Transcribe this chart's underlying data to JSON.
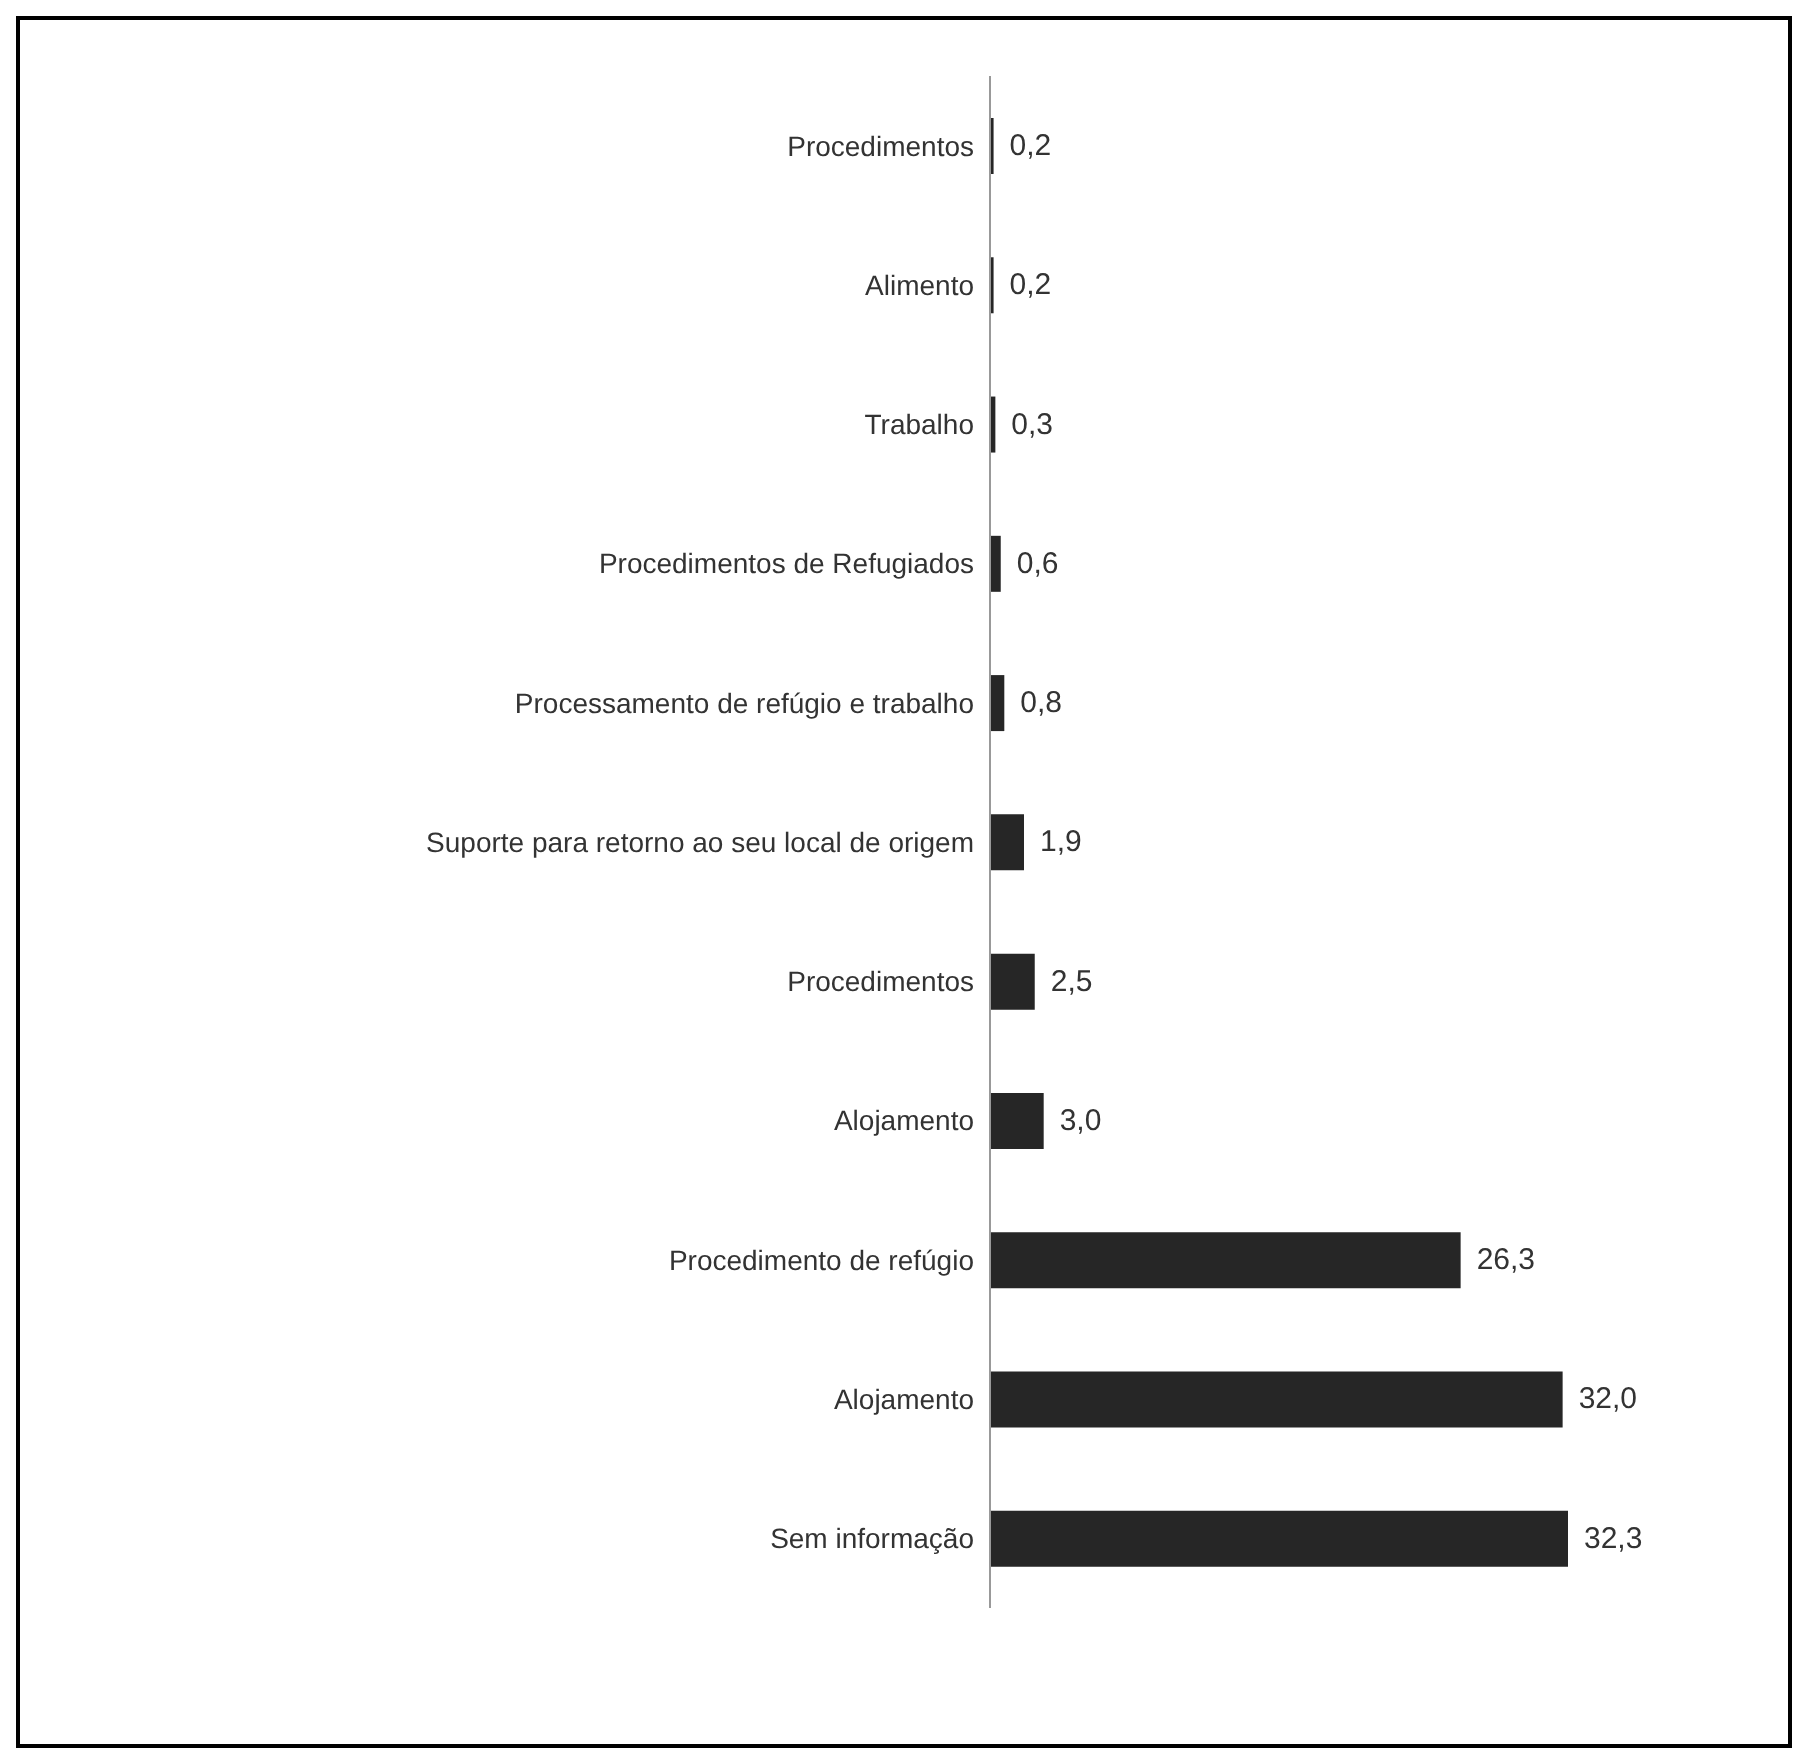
{
  "chart_data": {
    "type": "bar",
    "orientation": "horizontal",
    "categories": [
      "Procedimentos",
      "Alimento",
      "Trabalho",
      "Procedimentos de Refugiados",
      "Processamento de refúgio e trabalho",
      "Suporte para retorno ao seu local de origem",
      "Procedimentos",
      "Alojamento",
      "Procedimento de refúgio",
      "Alojamento",
      "Sem informação"
    ],
    "values": [
      0.2,
      0.2,
      0.3,
      0.6,
      0.8,
      1.9,
      2.5,
      3.0,
      26.3,
      32.0,
      32.3
    ],
    "value_labels": [
      "0,2",
      "0,2",
      "0,3",
      "0,6",
      "0,8",
      "1,9",
      "2,5",
      "3,0",
      "26,3",
      "32,0",
      "32,3"
    ],
    "color": "#262626"
  }
}
